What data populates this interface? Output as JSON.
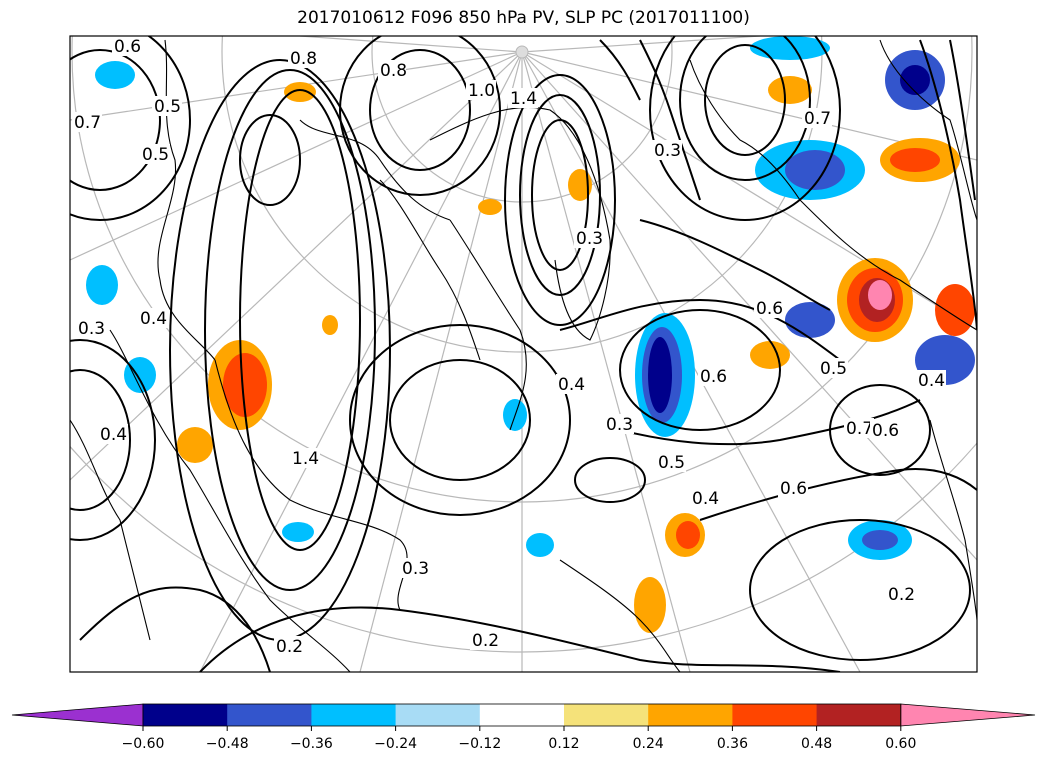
{
  "title": "2017010612 F096 850 hPa PV, SLP PC (2017011100)",
  "colorbar": {
    "ticks": [
      "−0.60",
      "−0.48",
      "−0.36",
      "−0.24",
      "−0.12",
      "0.12",
      "0.24",
      "0.36",
      "0.48",
      "0.60"
    ],
    "colors": [
      "#9b30d0",
      "#00008b",
      "#3355cc",
      "#00bfff",
      "#a8dcf5",
      "#ffffff",
      "#f5e27a",
      "#ffa500",
      "#ff4500",
      "#b22222",
      "#ff85b0"
    ]
  },
  "contour_labels": [
    "0.6",
    "0.5",
    "0.8",
    "0.7",
    "0.5",
    "1.0",
    "1.4",
    "0.3",
    "0.4",
    "0.3",
    "0.8",
    "1.4",
    "0.3",
    "0.4",
    "0.6",
    "0.5",
    "0.7",
    "0.6",
    "0.4",
    "0.3",
    "0.5",
    "0.4",
    "0.6",
    "0.2",
    "0.2",
    "0.2",
    "0.3",
    "0.4",
    "0.6",
    "0.7"
  ]
}
